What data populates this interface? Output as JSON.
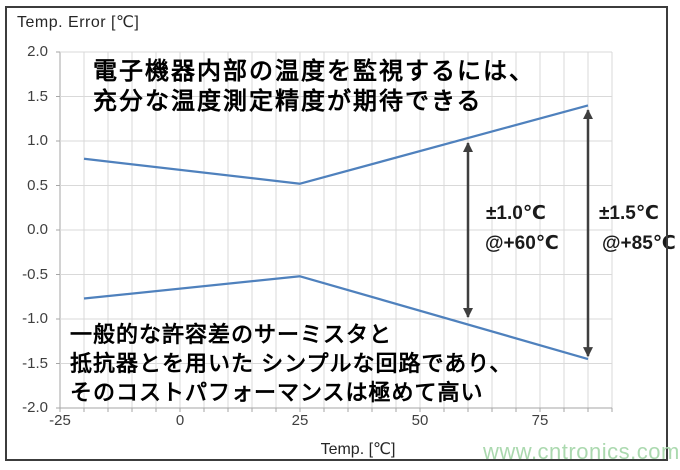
{
  "watermark": {
    "text": "www.cntronics.com",
    "color": "#abd9af"
  },
  "colors": {
    "line": "#4f81bd",
    "grid": "#d9d9d9",
    "axis": "#a6a6a6",
    "arrow": "#3f3f3f",
    "text": "#000000"
  },
  "chart_data": {
    "type": "line",
    "title": "Temp. Error [℃]",
    "xlabel": "Temp. [℃]",
    "ylabel": "Temp. Error [℃]",
    "xlim": [
      -25,
      90
    ],
    "ylim": [
      -2.0,
      2.0
    ],
    "x_minor_unit": 5,
    "grid": true,
    "x_ticks": [
      {
        "v": -25,
        "label": "-25"
      },
      {
        "v": 0,
        "label": "0"
      },
      {
        "v": 25,
        "label": "25"
      },
      {
        "v": 50,
        "label": "50"
      },
      {
        "v": 75,
        "label": "75"
      }
    ],
    "y_ticks": [
      {
        "v": 2.0,
        "label": "2.0"
      },
      {
        "v": 1.5,
        "label": "1.5"
      },
      {
        "v": 1.0,
        "label": "1.0"
      },
      {
        "v": 0.5,
        "label": "0.5"
      },
      {
        "v": 0.0,
        "label": "0.0"
      },
      {
        "v": -0.5,
        "label": "-0.5"
      },
      {
        "v": -1.0,
        "label": "-1.0"
      },
      {
        "v": -1.5,
        "label": "-1.5"
      },
      {
        "v": -2.0,
        "label": "-2.0"
      }
    ],
    "series": [
      {
        "name": "upper-error-bound",
        "color": "#4f81bd",
        "points": [
          [
            -20,
            0.8
          ],
          [
            25,
            0.52
          ],
          [
            85,
            1.4
          ]
        ]
      },
      {
        "name": "lower-error-bound",
        "color": "#4f81bd",
        "points": [
          [
            -20,
            -0.77
          ],
          [
            25,
            -0.52
          ],
          [
            85,
            -1.45
          ]
        ]
      }
    ],
    "arrows": [
      {
        "x": 60,
        "y_top": 1.0,
        "y_bottom": -1.0,
        "label_top": "±1.0℃",
        "label_bottom": "@+60℃"
      },
      {
        "x": 85,
        "y_top": 1.37,
        "y_bottom": -1.44,
        "label_top": "±1.5℃",
        "label_bottom": "@+85℃"
      }
    ],
    "annotations": [
      {
        "id": "upper-note",
        "lines": [
          "電子機器内部の温度を監視するには、",
          "充分な温度測定精度が期待できる"
        ]
      },
      {
        "id": "lower-note",
        "lines": [
          "一般的な許容差のサーミスタと",
          "抵抗器とを用いた シンプルな回路であり、",
          "そのコストパフォーマンスは極めて高い"
        ]
      }
    ]
  }
}
